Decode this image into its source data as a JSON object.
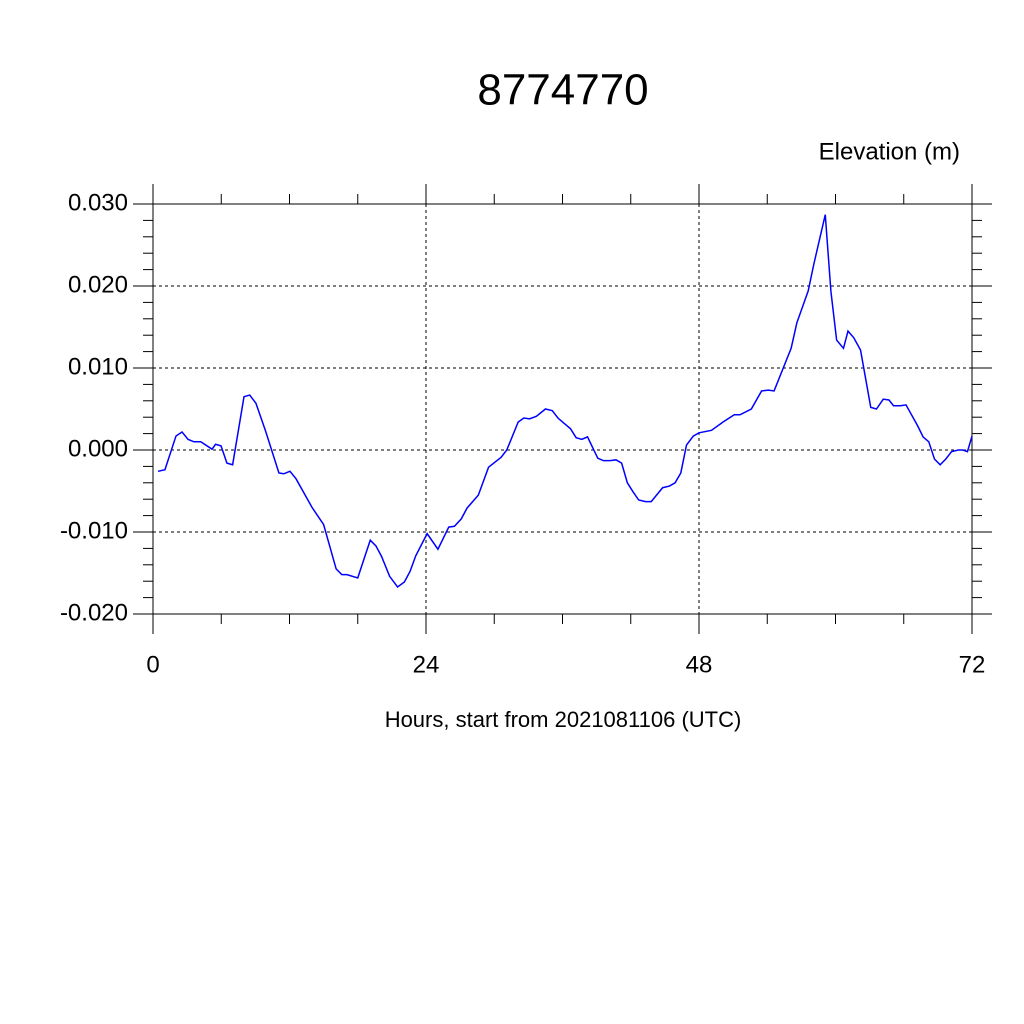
{
  "chart_data": {
    "type": "line",
    "title": "8774770",
    "y_label": "Elevation (m)",
    "x_label": "Hours, start from 2021081106 (UTC)",
    "color": "#0000ff",
    "grid": true,
    "xlim": [
      0,
      72
    ],
    "ylim": [
      -0.02,
      0.03
    ],
    "xticks": [
      0,
      24,
      48,
      72
    ],
    "xminorticks": [
      6,
      12,
      18,
      30,
      36,
      42,
      54,
      60,
      66
    ],
    "yticks": [
      {
        "value": -0.02,
        "label": "-0.020"
      },
      {
        "value": -0.01,
        "label": "-0.010"
      },
      {
        "value": 0,
        "label": "0.000"
      },
      {
        "value": 0.01,
        "label": "0.010"
      },
      {
        "value": 0.02,
        "label": "0.020"
      },
      {
        "value": 0.03,
        "label": "0.030"
      }
    ],
    "yminorticks": [
      -0.018,
      -0.016,
      -0.014,
      -0.012,
      -0.008,
      -0.006,
      -0.004,
      -0.002,
      0.002,
      0.004,
      0.006,
      0.008,
      0.012,
      0.014,
      0.016,
      0.018,
      0.022,
      0.024,
      0.026,
      0.028
    ],
    "x": [
      0.44,
      1.05,
      2.02,
      2.55,
      3.08,
      3.6,
      4.2,
      5.19,
      5.5,
      5.98,
      6.5,
      7.0,
      8.0,
      8.5,
      9.05,
      9.9,
      11.07,
      11.5,
      12.04,
      12.57,
      13.98,
      15.0,
      16.1,
      16.6,
      17.05,
      18.0,
      19.1,
      19.6,
      20.1,
      20.8,
      21.5,
      22.1,
      22.6,
      23.1,
      24.1,
      25.05,
      26.0,
      26.5,
      27.1,
      27.6,
      28.6,
      29.5,
      30.6,
      31.1,
      32.1,
      32.6,
      33.1,
      33.7,
      34.5,
      35.1,
      35.6,
      36.1,
      36.7,
      37.2,
      37.7,
      38.2,
      39.1,
      39.6,
      40.2,
      40.7,
      41.2,
      41.7,
      42.2,
      42.7,
      43.3,
      43.8,
      44.8,
      45.4,
      45.9,
      46.4,
      46.9,
      47.5,
      48.0,
      49.1,
      50.1,
      51.1,
      51.6,
      52.6,
      53.5,
      54.1,
      54.6,
      56.1,
      56.6,
      57.6,
      58.1,
      59.1,
      59.6,
      60.1,
      60.7,
      61.1,
      61.6,
      62.2,
      63.1,
      63.6,
      64.2,
      64.7,
      65.1,
      65.7,
      66.2,
      67.2,
      67.7,
      68.2,
      68.7,
      69.2,
      69.7,
      70.2,
      70.8,
      71.2,
      71.6,
      72.0
    ],
    "values": [
      -0.0026,
      -0.0024,
      0.0017,
      0.0022,
      0.0013,
      0.001,
      0.001,
      0.0001,
      0.0007,
      0.0005,
      -0.0016,
      -0.0018,
      0.0065,
      0.0067,
      0.0057,
      0.0023,
      -0.0028,
      -0.0029,
      -0.0026,
      -0.0035,
      -0.007,
      -0.0091,
      -0.0145,
      -0.0152,
      -0.0152,
      -0.0156,
      -0.011,
      -0.0117,
      -0.013,
      -0.0154,
      -0.0167,
      -0.0161,
      -0.0148,
      -0.0129,
      -0.0102,
      -0.0121,
      -0.0094,
      -0.0093,
      -0.0084,
      -0.0071,
      -0.0055,
      -0.0021,
      -0.0009,
      0.0,
      0.0034,
      0.0039,
      0.0038,
      0.0041,
      0.005,
      0.0048,
      0.0039,
      0.0033,
      0.0026,
      0.0015,
      0.0013,
      0.0016,
      -0.001,
      -0.0013,
      -0.0013,
      -0.0012,
      -0.0016,
      -0.004,
      -0.0051,
      -0.0061,
      -0.0063,
      -0.0063,
      -0.0046,
      -0.0044,
      -0.004,
      -0.0028,
      0.0006,
      0.0017,
      0.0021,
      0.0024,
      0.0034,
      0.0043,
      0.0043,
      0.005,
      0.0072,
      0.0073,
      0.0072,
      0.0124,
      0.0155,
      0.0194,
      0.0227,
      0.0287,
      0.0193,
      0.0134,
      0.0124,
      0.0145,
      0.0137,
      0.0122,
      0.0052,
      0.005,
      0.0062,
      0.0061,
      0.0054,
      0.0054,
      0.0055,
      0.003,
      0.0016,
      0.001,
      -0.0011,
      -0.0018,
      -0.0011,
      -0.0002,
      0.0,
      0.0,
      -0.0002,
      0.0017
    ]
  }
}
